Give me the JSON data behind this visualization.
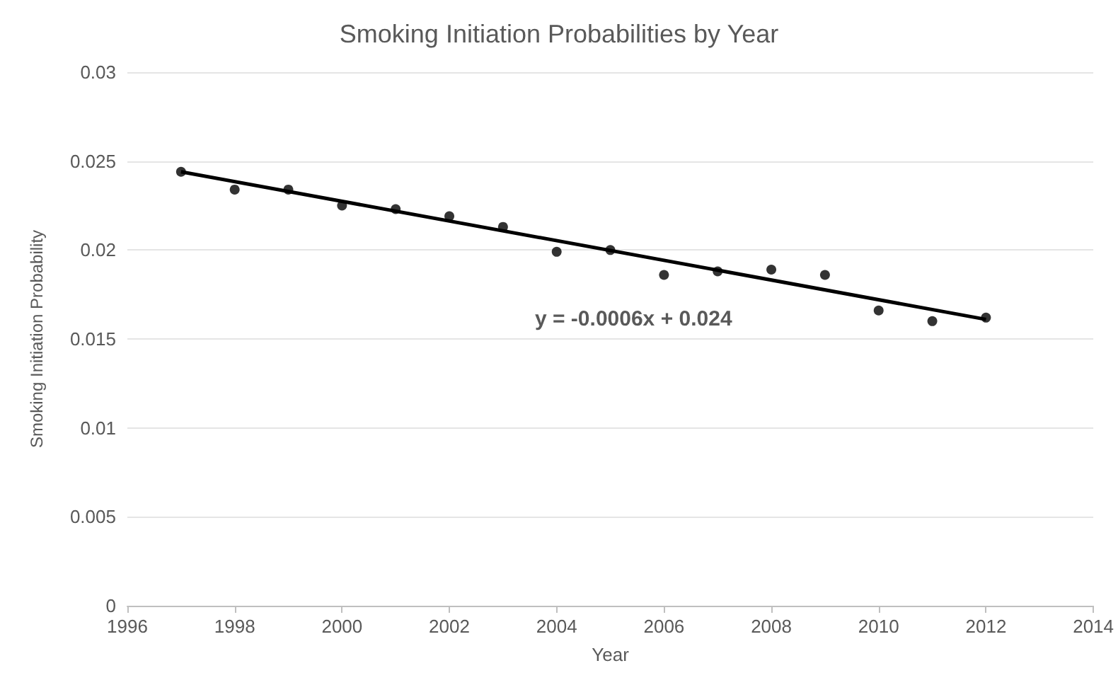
{
  "chart_data": {
    "type": "scatter",
    "title": "Smoking Initiation Probabilities by Year",
    "xlabel": "Year",
    "ylabel": "Smoking Initiation Probability",
    "x": [
      1997,
      1998,
      1999,
      2000,
      2001,
      2002,
      2003,
      2004,
      2005,
      2006,
      2007,
      2008,
      2009,
      2010,
      2011,
      2012
    ],
    "series": [
      {
        "color": "#000000",
        "marker": "circle",
        "values": [
          0.0244,
          0.0234,
          0.0234,
          0.0225,
          0.0223,
          0.0219,
          0.0213,
          0.0199,
          0.02,
          0.0186,
          0.0188,
          0.0189,
          0.0186,
          0.0166,
          0.016,
          0.0162
        ]
      },
      {
        "type": "line",
        "color": "#000000",
        "marker": "none",
        "x": [
          1997,
          2012
        ],
        "values": [
          0.0244,
          0.0161
        ]
      }
    ],
    "annotations": [
      "y = -0.0006x + 0.024"
    ],
    "xlim": [
      1996,
      2014
    ],
    "xticks": [
      1996,
      1998,
      2000,
      2002,
      2004,
      2006,
      2008,
      2010,
      2012,
      2014
    ],
    "ylim": [
      0,
      0.03
    ],
    "yticks": [
      0,
      0.005,
      0.01,
      0.015,
      0.02,
      0.025,
      0.03
    ],
    "grid": "y",
    "line_style": "solid"
  }
}
